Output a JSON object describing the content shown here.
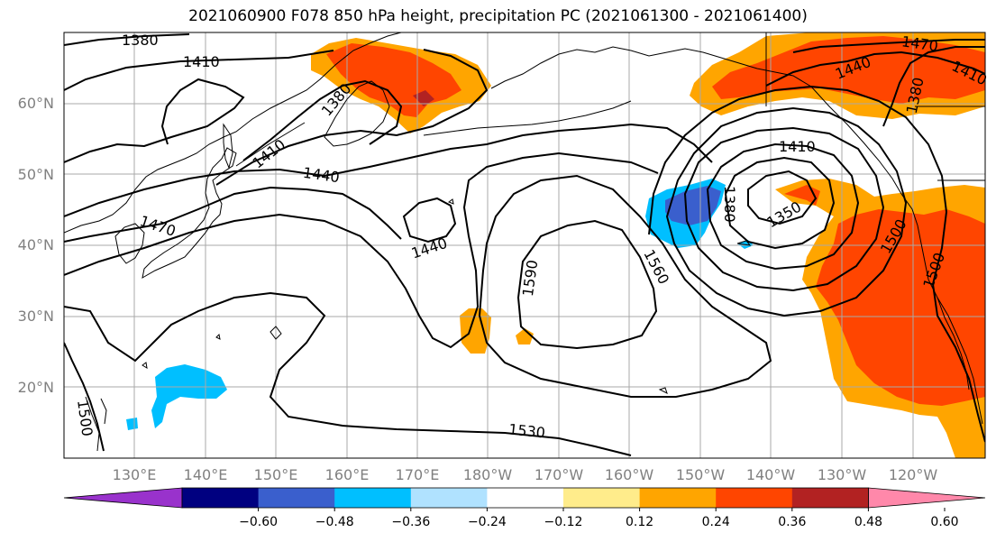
{
  "title": "2021060900 F078 850 hPa height, precipitation PC (2021061300 - 2021061400)",
  "lat_labels": [
    "60°N",
    "50°N",
    "40°N",
    "30°N",
    "20°N"
  ],
  "lon_labels": [
    "130°E",
    "140°E",
    "150°E",
    "160°E",
    "170°E",
    "180°W",
    "170°W",
    "160°W",
    "150°W",
    "140°W",
    "130°W",
    "120°W"
  ],
  "contour_labels": [
    "1380",
    "1410",
    "1380",
    "1410",
    "1440",
    "1470",
    "1440",
    "1590",
    "1560",
    "1530",
    "1410",
    "1350",
    "1380",
    "1440",
    "1470",
    "1410",
    "1380",
    "1500",
    "1500",
    "1500"
  ],
  "colorbar": {
    "colors": [
      "#9932cc",
      "#000080",
      "#3a5fcd",
      "#00bfff",
      "#b0e2ff",
      "#ffffff",
      "#ffec8b",
      "#ffa500",
      "#ff4500",
      "#b22222",
      "#ff88aa"
    ],
    "ticks": [
      "−0.60",
      "−0.48",
      "−0.36",
      "−0.24",
      "−0.12",
      "0.12",
      "0.24",
      "0.36",
      "0.48",
      "0.60"
    ]
  },
  "colors": {
    "positive_light": "#ffec8b",
    "positive_mid": "#ffa500",
    "positive_strong": "#ff4500",
    "negative_light": "#00bfff",
    "negative_strong": "#3a5fcd",
    "negative_deep": "#000080"
  }
}
